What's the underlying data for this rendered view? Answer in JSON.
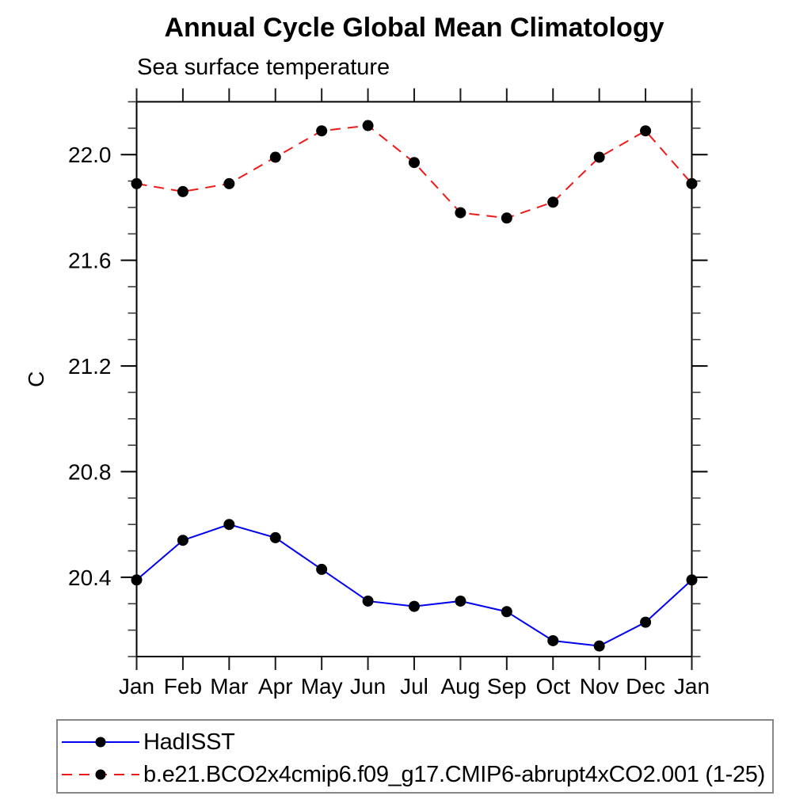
{
  "chart_data": {
    "type": "line",
    "title": "Annual Cycle Global Mean Climatology",
    "subtitle": "Sea surface temperature",
    "ylabel": "C",
    "xlabel": "",
    "x_categories": [
      "Jan",
      "Feb",
      "Mar",
      "Apr",
      "May",
      "Jun",
      "Jul",
      "Aug",
      "Sep",
      "Oct",
      "Nov",
      "Dec",
      "Jan"
    ],
    "ylim": [
      20.1,
      22.2
    ],
    "yticks": {
      "major_values": [
        20.4,
        20.8,
        21.2,
        21.6,
        22.0
      ],
      "major_labels": [
        "20.4",
        "20.8",
        "21.2",
        "21.6",
        "22.0"
      ],
      "minor_step": 0.1
    },
    "grid": false,
    "frame": true,
    "marker_color": "#000000",
    "legend_position": "bottom-left-boxed",
    "series": [
      {
        "name": "HadISST",
        "color": "#0000ee",
        "line_style": "solid",
        "marker": "filled-circle",
        "values": [
          20.39,
          20.54,
          20.6,
          20.55,
          20.43,
          20.31,
          20.29,
          20.31,
          20.27,
          20.16,
          20.14,
          20.23,
          20.39
        ]
      },
      {
        "name": "b.e21.BCO2x4cmip6.f09_g17.CMIP6-abrupt4xCO2.001 (1-25)",
        "color": "#ee1a1a",
        "line_style": "dashed",
        "marker": "filled-circle",
        "values": [
          21.89,
          21.86,
          21.89,
          21.99,
          22.09,
          22.11,
          21.97,
          21.78,
          21.76,
          21.82,
          21.99,
          22.09,
          21.89
        ]
      }
    ]
  }
}
